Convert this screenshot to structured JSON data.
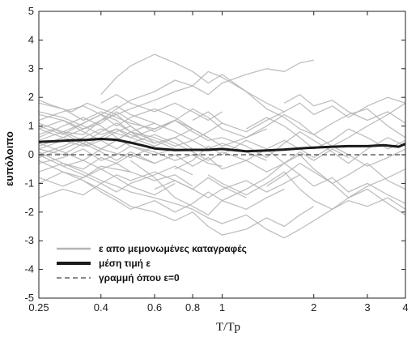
{
  "chart_data": {
    "type": "line",
    "title": "",
    "xlabel": "T/Tp",
    "ylabel": "ευπόλοιπο",
    "x_scale": "log",
    "xlim": [
      0.25,
      4
    ],
    "ylim": [
      -5,
      5
    ],
    "x_ticks": [
      0.25,
      0.4,
      0.6,
      0.8,
      1,
      2,
      3,
      4
    ],
    "x_tick_labels": [
      "0.25",
      "0.4",
      "0.6",
      "0.8",
      "1",
      "2",
      "3",
      "4"
    ],
    "y_ticks": [
      -5,
      -4,
      -3,
      -2,
      -1,
      0,
      1,
      2,
      3,
      4,
      5
    ],
    "y_tick_labels": [
      "-5",
      "-4",
      "-3",
      "-2",
      "-1",
      "0",
      "1",
      "2",
      "3",
      "4",
      "5"
    ],
    "grid": false,
    "legend_position": "bottom-left",
    "colors": {
      "records": "#b4b4b4",
      "mean": "#1a1a1a",
      "zero": "#444444"
    },
    "legend": [
      {
        "label": "ε απο μεμονωμένες καταγραφές",
        "style": "gray-line"
      },
      {
        "label": "μέση τιμή ε",
        "style": "thick-black-line"
      },
      {
        "label": "γραμμή όπου ε=0",
        "style": "dashed-line"
      }
    ],
    "series": [
      {
        "name": "μέση τιμή ε",
        "x": [
          0.25,
          0.28,
          0.32,
          0.36,
          0.4,
          0.45,
          0.5,
          0.55,
          0.6,
          0.7,
          0.8,
          0.9,
          1.0,
          1.2,
          1.4,
          1.6,
          1.8,
          2.0,
          2.3,
          2.6,
          3.0,
          3.4,
          3.8,
          4.0
        ],
        "y": [
          0.45,
          0.47,
          0.5,
          0.52,
          0.55,
          0.52,
          0.42,
          0.32,
          0.22,
          0.16,
          0.17,
          0.17,
          0.2,
          0.12,
          0.15,
          0.18,
          0.22,
          0.25,
          0.28,
          0.3,
          0.3,
          0.33,
          0.28,
          0.38
        ]
      }
    ],
    "records": [
      {
        "x": [
          0.25,
          0.3,
          0.35,
          0.4,
          0.45,
          0.5,
          0.6,
          0.7,
          0.8,
          0.9,
          1.0
        ],
        "y": [
          1.8,
          1.6,
          1.2,
          1.5,
          1.3,
          1.1,
          0.9,
          1.2,
          0.8,
          0.5,
          0.6
        ]
      },
      {
        "x": [
          0.25,
          0.3,
          0.35,
          0.4,
          0.45,
          0.5,
          0.6,
          0.7,
          0.8,
          0.9,
          1.0,
          1.2,
          1.4
        ],
        "y": [
          1.0,
          0.7,
          1.1,
          1.4,
          1.2,
          0.8,
          0.6,
          0.3,
          0.5,
          0.2,
          0.4,
          0.1,
          -0.2
        ]
      },
      {
        "x": [
          0.25,
          0.3,
          0.35,
          0.4,
          0.45,
          0.5,
          0.6,
          0.7,
          0.8
        ],
        "y": [
          0.2,
          0.5,
          0.3,
          0.6,
          0.9,
          0.7,
          0.4,
          0.6,
          0.2
        ]
      },
      {
        "x": [
          0.25,
          0.3,
          0.35,
          0.4,
          0.45,
          0.5,
          0.6,
          0.7,
          0.8,
          0.9,
          1.0
        ],
        "y": [
          -0.3,
          -0.1,
          0.2,
          -0.2,
          0.0,
          0.3,
          0.1,
          -0.2,
          0.0,
          -0.3,
          -0.4
        ]
      },
      {
        "x": [
          0.25,
          0.3,
          0.35,
          0.4,
          0.5,
          0.6,
          0.7,
          0.8
        ],
        "y": [
          -1.0,
          -0.6,
          -0.8,
          -0.4,
          -0.6,
          -0.9,
          -0.7,
          -1.1
        ]
      },
      {
        "x": [
          0.25,
          0.3,
          0.35,
          0.4,
          0.45,
          0.5,
          0.6
        ],
        "y": [
          1.4,
          1.2,
          0.9,
          1.1,
          1.5,
          1.2,
          0.8
        ]
      },
      {
        "x": [
          0.25,
          0.3,
          0.35,
          0.4,
          0.45,
          0.5,
          0.6,
          0.7
        ],
        "y": [
          0.6,
          1.0,
          1.3,
          1.0,
          0.6,
          0.3,
          0.0,
          0.2
        ]
      },
      {
        "x": [
          0.25,
          0.3,
          0.35,
          0.4,
          0.45,
          0.5
        ],
        "y": [
          -0.6,
          -0.3,
          -0.5,
          -0.1,
          -0.3,
          -0.6
        ]
      },
      {
        "x": [
          0.25,
          0.28,
          0.32,
          0.36,
          0.4,
          0.45,
          0.5,
          0.55
        ],
        "y": [
          1.9,
          1.7,
          1.5,
          1.8,
          1.6,
          1.4,
          1.0,
          0.7
        ]
      },
      {
        "x": [
          0.25,
          0.3,
          0.35,
          0.4,
          0.45,
          0.5,
          0.55
        ],
        "y": [
          0.9,
          0.6,
          0.4,
          0.8,
          1.1,
          0.8,
          0.5
        ]
      },
      {
        "x": [
          0.25,
          0.3,
          0.35,
          0.4,
          0.5,
          0.6
        ],
        "y": [
          0.0,
          -0.4,
          -0.2,
          0.2,
          -0.1,
          0.3
        ]
      },
      {
        "x": [
          0.25,
          0.3,
          0.35,
          0.4,
          0.45,
          0.5,
          0.6,
          0.7,
          0.8,
          0.9,
          1.0,
          1.2,
          1.4,
          1.6,
          1.8,
          2.0,
          2.3,
          2.6,
          3.0,
          3.5,
          4.0
        ],
        "y": [
          0.5,
          0.8,
          0.7,
          1.2,
          1.6,
          1.9,
          2.2,
          2.6,
          2.4,
          2.9,
          2.7,
          2.2,
          1.6,
          1.3,
          0.9,
          0.7,
          1.1,
          1.4,
          1.6,
          1.0,
          0.6
        ]
      },
      {
        "x": [
          0.25,
          0.3,
          0.35,
          0.4,
          0.45,
          0.5,
          0.6,
          0.7,
          0.8,
          0.9,
          1.0,
          1.2,
          1.4,
          1.6,
          1.8,
          2.0
        ],
        "y": [
          0.3,
          0.6,
          0.9,
          1.2,
          1.4,
          1.6,
          1.9,
          2.2,
          2.4,
          2.1,
          2.5,
          2.8,
          3.0,
          2.9,
          3.2,
          3.3
        ]
      },
      {
        "x": [
          0.4,
          0.45,
          0.5,
          0.6,
          0.7,
          0.8,
          0.9,
          1.0,
          1.2,
          1.4,
          1.6
        ],
        "y": [
          2.1,
          2.7,
          3.1,
          3.5,
          3.2,
          2.9,
          2.5,
          2.8,
          2.2,
          1.8,
          1.5
        ]
      },
      {
        "x": [
          0.25,
          0.3,
          0.35,
          0.4,
          0.45,
          0.5,
          0.6,
          0.7,
          0.8,
          0.9,
          1.0,
          1.2,
          1.4,
          1.6,
          1.8,
          2.0,
          2.3,
          2.6,
          3.0,
          3.5,
          4.0
        ],
        "y": [
          0.1,
          -0.3,
          -0.6,
          -0.9,
          -1.1,
          -1.3,
          -1.5,
          -1.7,
          -1.9,
          -2.2,
          -2.4,
          -2.1,
          -2.6,
          -2.9,
          -2.6,
          -2.3,
          -1.9,
          -1.6,
          -1.8,
          -1.5,
          -1.9
        ]
      },
      {
        "x": [
          0.25,
          0.3,
          0.35,
          0.4,
          0.45,
          0.5,
          0.6,
          0.7,
          0.8,
          0.9,
          1.0,
          1.2,
          1.4,
          1.6,
          1.8,
          2.0
        ],
        "y": [
          -0.2,
          -0.6,
          -0.9,
          -1.2,
          -1.5,
          -1.8,
          -2.0,
          -2.3,
          -2.0,
          -2.5,
          -2.8,
          -2.6,
          -2.2,
          -2.5,
          -2.1,
          -1.8
        ]
      },
      {
        "x": [
          0.5,
          0.6,
          0.7,
          0.8,
          0.9,
          1.0,
          1.2,
          1.4,
          1.6,
          1.8,
          2.0,
          2.3,
          2.6,
          3.0,
          3.5,
          4.0
        ],
        "y": [
          -0.2,
          -0.8,
          -1.5,
          -1.8,
          -2.1,
          -1.6,
          -1.2,
          -0.8,
          -0.3,
          0.0,
          -0.5,
          -1.0,
          -1.5,
          -1.2,
          -1.7,
          -2.1
        ]
      },
      {
        "x": [
          0.6,
          0.7,
          0.8,
          0.9,
          1.0,
          1.2,
          1.4,
          1.6,
          1.8,
          2.0,
          2.3,
          2.6,
          3.0,
          3.5,
          4.0
        ],
        "y": [
          0.8,
          1.2,
          1.6,
          1.3,
          0.9,
          0.6,
          1.0,
          1.4,
          1.1,
          0.7,
          0.3,
          0.6,
          1.0,
          1.4,
          1.8
        ]
      },
      {
        "x": [
          0.7,
          0.8,
          0.9,
          1.0,
          1.2,
          1.4,
          1.6,
          1.8,
          2.0,
          2.3,
          2.6,
          3.0,
          3.5,
          4.0
        ],
        "y": [
          -0.5,
          -0.2,
          0.3,
          0.0,
          0.5,
          0.2,
          -0.3,
          -0.7,
          -1.1,
          -0.8,
          -1.3,
          -1.0,
          -1.4,
          -1.7
        ]
      },
      {
        "x": [
          0.8,
          0.9,
          1.0,
          1.2,
          1.4,
          1.6,
          1.8,
          2.0,
          2.3,
          2.6,
          3.0,
          3.5,
          4.0
        ],
        "y": [
          1.2,
          1.5,
          1.1,
          0.8,
          1.2,
          1.5,
          1.8,
          1.4,
          1.7,
          1.3,
          1.7,
          2.0,
          1.8
        ]
      },
      {
        "x": [
          0.9,
          1.0,
          1.2,
          1.4,
          1.6,
          1.8,
          2.0,
          2.3,
          2.6,
          3.0,
          3.5,
          4.0
        ],
        "y": [
          -0.7,
          -1.0,
          -1.4,
          -1.0,
          -0.6,
          -1.2,
          -1.6,
          -1.9,
          -1.5,
          -1.1,
          -0.8,
          -0.5
        ]
      },
      {
        "x": [
          1.0,
          1.2,
          1.4,
          1.6,
          1.8,
          2.0,
          2.3,
          2.6,
          3.0,
          3.5,
          4.0
        ],
        "y": [
          0.6,
          0.3,
          -0.1,
          0.4,
          0.8,
          0.5,
          0.1,
          -0.3,
          0.2,
          0.6,
          0.3
        ]
      },
      {
        "x": [
          1.2,
          1.4,
          1.6,
          1.8,
          2.0,
          2.3,
          2.6,
          3.0,
          3.5,
          4.0
        ],
        "y": [
          0.9,
          1.3,
          1.0,
          0.6,
          0.2,
          0.5,
          0.9,
          0.6,
          0.2,
          0.5
        ]
      },
      {
        "x": [
          1.4,
          1.6,
          1.8,
          2.0,
          2.3,
          2.6,
          3.0,
          3.5,
          4.0
        ],
        "y": [
          -1.1,
          -0.7,
          -0.3,
          -0.6,
          -1.0,
          -0.7,
          -0.3,
          -0.9,
          -1.2
        ]
      },
      {
        "x": [
          1.6,
          1.8,
          2.0,
          2.3,
          2.6,
          3.0,
          3.5,
          4.0
        ],
        "y": [
          1.8,
          2.1,
          1.7,
          1.9,
          1.5,
          1.2,
          1.5,
          1.1
        ]
      },
      {
        "x": [
          2.0,
          2.3,
          2.6,
          3.0,
          3.5,
          4.0
        ],
        "y": [
          -0.1,
          0.3,
          0.0,
          -0.4,
          -0.1,
          0.2
        ]
      },
      {
        "x": [
          0.25,
          0.3,
          0.35,
          0.4,
          0.45,
          0.5,
          0.6,
          0.7,
          0.8,
          0.9,
          1.0,
          1.2
        ],
        "y": [
          -1.5,
          -1.2,
          -1.4,
          -1.0,
          -0.7,
          -0.9,
          -0.6,
          -0.9,
          -1.2,
          -0.8,
          -1.1,
          -1.5
        ]
      },
      {
        "x": [
          0.25,
          0.3,
          0.35,
          0.4,
          0.45,
          0.5,
          0.6,
          0.7,
          0.8
        ],
        "y": [
          1.2,
          1.5,
          1.7,
          1.4,
          1.0,
          1.3,
          1.6,
          1.3,
          0.9
        ]
      },
      {
        "x": [
          0.25,
          0.3,
          0.35,
          0.4,
          0.45,
          0.5,
          0.6
        ],
        "y": [
          0.4,
          0.1,
          -0.2,
          -0.5,
          -0.3,
          0.0,
          -0.3
        ]
      },
      {
        "x": [
          0.3,
          0.35,
          0.4,
          0.45,
          0.5,
          0.6,
          0.7,
          0.8,
          0.9,
          1.0
        ],
        "y": [
          0.8,
          0.5,
          0.2,
          0.5,
          0.8,
          1.1,
          0.8,
          0.5,
          0.8,
          1.1
        ]
      },
      {
        "x": [
          0.25,
          0.3,
          0.35,
          0.4,
          0.45,
          0.5,
          0.6,
          0.7
        ],
        "y": [
          -0.8,
          -1.1,
          -0.8,
          -0.5,
          -0.8,
          -1.1,
          -1.4,
          -1.0
        ]
      },
      {
        "x": [
          0.25,
          0.28,
          0.32,
          0.36,
          0.4,
          0.45,
          0.5,
          0.55,
          0.6
        ],
        "y": [
          0.7,
          0.9,
          0.6,
          0.3,
          0.5,
          0.8,
          1.0,
          0.7,
          0.4
        ]
      },
      {
        "x": [
          0.25,
          0.3,
          0.35,
          0.4,
          0.45,
          0.5,
          0.6,
          0.7,
          0.8,
          0.9
        ],
        "y": [
          1.5,
          1.3,
          1.0,
          0.7,
          0.9,
          0.6,
          0.3,
          0.6,
          0.9,
          0.6
        ]
      },
      {
        "x": [
          0.3,
          0.35,
          0.4,
          0.45,
          0.5,
          0.6,
          0.7,
          0.8
        ],
        "y": [
          -0.4,
          -0.7,
          -1.0,
          -1.3,
          -1.0,
          -0.7,
          -0.4,
          -0.7
        ]
      },
      {
        "x": [
          0.25,
          0.3,
          0.35,
          0.4,
          0.5,
          0.6,
          0.7,
          0.8,
          0.9,
          1.0,
          1.2,
          1.4
        ],
        "y": [
          0.0,
          0.3,
          0.6,
          0.9,
          0.6,
          0.9,
          1.2,
          0.9,
          0.6,
          0.3,
          0.6,
          0.9
        ]
      },
      {
        "x": [
          0.25,
          0.3,
          0.35,
          0.4,
          0.45,
          0.5,
          0.6,
          0.7,
          0.8,
          0.9,
          1.0,
          1.2,
          1.4,
          1.6,
          1.8,
          2.0,
          2.3,
          2.6
        ],
        "y": [
          0.2,
          0.0,
          0.4,
          0.1,
          -0.2,
          0.1,
          -0.3,
          0.0,
          -0.4,
          -0.1,
          -0.5,
          -0.2,
          -0.6,
          -0.3,
          0.1,
          -0.2,
          0.2,
          -0.1
        ]
      },
      {
        "x": [
          0.35,
          0.4,
          0.45,
          0.5,
          0.6,
          0.7,
          0.8,
          0.9,
          1.0,
          1.2,
          1.4,
          1.6
        ],
        "y": [
          -0.9,
          -1.3,
          -1.6,
          -1.9,
          -1.6,
          -2.0,
          -1.7,
          -1.3,
          -1.6,
          -1.9,
          -1.5,
          -1.2
        ]
      },
      {
        "x": [
          0.4,
          0.45,
          0.5,
          0.6,
          0.7,
          0.8,
          0.9,
          1.0
        ],
        "y": [
          1.8,
          2.1,
          1.8,
          1.5,
          1.8,
          1.5,
          1.2,
          1.5
        ]
      },
      {
        "x": [
          0.25,
          0.3,
          0.35,
          0.4,
          0.45,
          0.5
        ],
        "y": [
          0.9,
          1.2,
          0.8,
          0.5,
          0.2,
          0.5
        ]
      },
      {
        "x": [
          0.25,
          0.3,
          0.35,
          0.4,
          0.45,
          0.5,
          0.6,
          0.7
        ],
        "y": [
          -0.1,
          0.2,
          0.5,
          0.2,
          0.5,
          0.8,
          0.5,
          0.2
        ]
      },
      {
        "x": [
          0.5,
          0.6,
          0.7,
          0.8,
          0.9,
          1.0,
          1.2,
          1.4,
          1.6,
          1.8,
          2.0
        ],
        "y": [
          0.4,
          0.7,
          0.4,
          0.1,
          -0.2,
          0.1,
          -0.2,
          0.2,
          0.5,
          0.2,
          -0.1
        ]
      },
      {
        "x": [
          0.6,
          0.7,
          0.8,
          0.9,
          1.0,
          1.2,
          1.4,
          1.6,
          1.8
        ],
        "y": [
          -1.2,
          -0.9,
          -1.2,
          -1.5,
          -1.2,
          -0.9,
          -1.3,
          -1.0,
          -0.7
        ]
      },
      {
        "x": [
          0.25,
          0.3,
          0.35,
          0.4,
          0.45,
          0.5,
          0.6
        ],
        "y": [
          1.1,
          0.8,
          1.1,
          1.4,
          1.7,
          1.4,
          1.1
        ]
      }
    ]
  }
}
